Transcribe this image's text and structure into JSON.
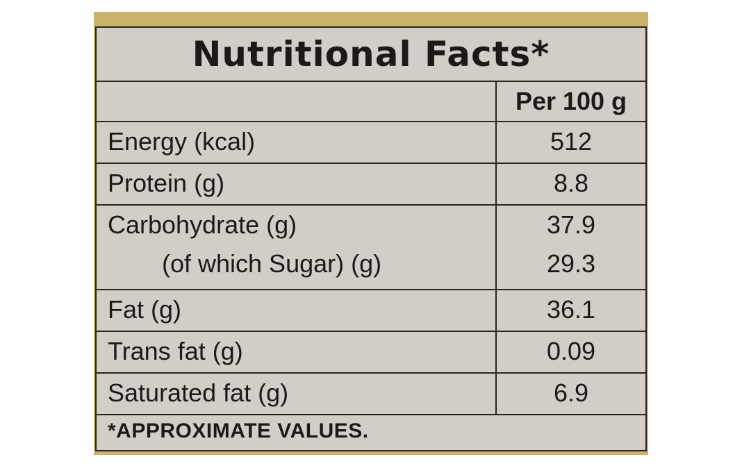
{
  "label": {
    "title": "Nutritional Facts*",
    "column_header": "Per 100 g",
    "rows": [
      {
        "label": "Energy (kcal)",
        "value": "512"
      },
      {
        "label": "Protein (g)",
        "value": "8.8"
      },
      {
        "label": "Carbohydrate (g)",
        "value": "37.9",
        "sub_label": "(of which Sugar) (g)",
        "sub_value": "29.3"
      },
      {
        "label": "Fat (g)",
        "value": "36.1"
      },
      {
        "label": "Trans fat (g)",
        "value": "0.09"
      },
      {
        "label": "Saturated fat (g)",
        "value": "6.9"
      }
    ],
    "footnote": "*APPROXIMATE VALUES."
  },
  "colors": {
    "panel_background": "#d2cdc6",
    "frame_gold": "#c9b46a",
    "rule_lines": "#2a2520",
    "text": "#1c1916"
  }
}
